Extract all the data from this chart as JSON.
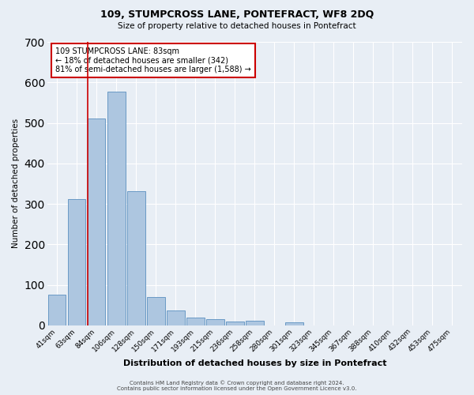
{
  "title": "109, STUMPCROSS LANE, PONTEFRACT, WF8 2DQ",
  "subtitle": "Size of property relative to detached houses in Pontefract",
  "xlabel": "Distribution of detached houses by size in Pontefract",
  "ylabel": "Number of detached properties",
  "categories": [
    "41sqm",
    "63sqm",
    "84sqm",
    "106sqm",
    "128sqm",
    "150sqm",
    "171sqm",
    "193sqm",
    "215sqm",
    "236sqm",
    "258sqm",
    "280sqm",
    "301sqm",
    "323sqm",
    "345sqm",
    "367sqm",
    "388sqm",
    "410sqm",
    "432sqm",
    "453sqm",
    "475sqm"
  ],
  "bar_heights": [
    75,
    312,
    510,
    578,
    332,
    70,
    37,
    20,
    15,
    10,
    12,
    0,
    8,
    0,
    0,
    0,
    0,
    0,
    0,
    0,
    0
  ],
  "bar_color": "#adc6e0",
  "bar_edge_color": "#5a8fbf",
  "vline_x_index": 2,
  "vline_color": "#cc0000",
  "annotation_line1": "109 STUMPCROSS LANE: 83sqm",
  "annotation_line2": "← 18% of detached houses are smaller (342)",
  "annotation_line3": "81% of semi-detached houses are larger (1,588) →",
  "annotation_box_color": "#ffffff",
  "annotation_box_edgecolor": "#cc0000",
  "ylim": [
    0,
    700
  ],
  "yticks": [
    0,
    100,
    200,
    300,
    400,
    500,
    600,
    700
  ],
  "background_color": "#e8eef5",
  "grid_color": "#ffffff",
  "footer_line1": "Contains HM Land Registry data © Crown copyright and database right 2024.",
  "footer_line2": "Contains public sector information licensed under the Open Government Licence v3.0."
}
